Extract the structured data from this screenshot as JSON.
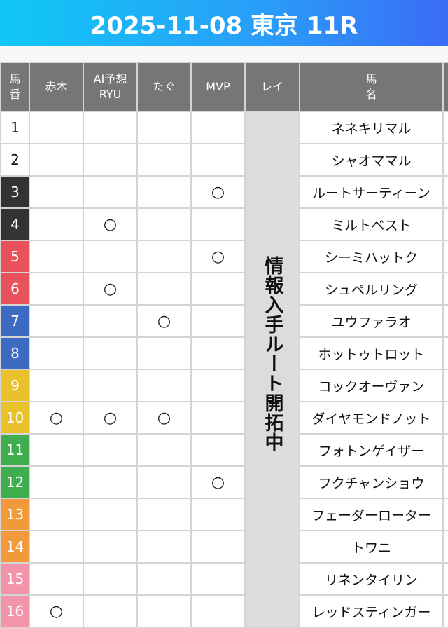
{
  "header": {
    "title": "2025-11-08 東京 11R"
  },
  "columns": {
    "num": "馬\n番",
    "akagi": "赤木",
    "ai": "AI予想\nRYU",
    "tagu": "たぐ",
    "mvp": "MVP",
    "rei": "レイ",
    "name": "馬\n名"
  },
  "rei_note": "情報入手ルート開拓中",
  "mark_symbol": "○",
  "gate_colors": {
    "1": "#ffffff",
    "2": "#333333",
    "3": "#e8525a",
    "4": "#3d6bc1",
    "5": "#e9c22b",
    "6": "#40ad4f",
    "7": "#f09a3b",
    "8": "#f395aa"
  },
  "rows": [
    {
      "num": "1",
      "gate": 1,
      "name": "ネネキリマル",
      "akagi": "",
      "ai": "",
      "tagu": "",
      "mvp": ""
    },
    {
      "num": "2",
      "gate": 1,
      "name": "シャオママル",
      "akagi": "",
      "ai": "",
      "tagu": "",
      "mvp": ""
    },
    {
      "num": "3",
      "gate": 2,
      "name": "ルートサーティーン",
      "akagi": "",
      "ai": "",
      "tagu": "",
      "mvp": "○"
    },
    {
      "num": "4",
      "gate": 2,
      "name": "ミルトベスト",
      "akagi": "",
      "ai": "○",
      "tagu": "",
      "mvp": ""
    },
    {
      "num": "5",
      "gate": 3,
      "name": "シーミハットク",
      "akagi": "",
      "ai": "",
      "tagu": "",
      "mvp": "○"
    },
    {
      "num": "6",
      "gate": 3,
      "name": "シュペルリング",
      "akagi": "",
      "ai": "○",
      "tagu": "",
      "mvp": ""
    },
    {
      "num": "7",
      "gate": 4,
      "name": "ユウファラオ",
      "akagi": "",
      "ai": "",
      "tagu": "○",
      "mvp": ""
    },
    {
      "num": "8",
      "gate": 4,
      "name": "ホットゥトロット",
      "akagi": "",
      "ai": "",
      "tagu": "",
      "mvp": ""
    },
    {
      "num": "9",
      "gate": 5,
      "name": "コックオーヴァン",
      "akagi": "",
      "ai": "",
      "tagu": "",
      "mvp": ""
    },
    {
      "num": "10",
      "gate": 5,
      "name": "ダイヤモンドノット",
      "akagi": "○",
      "ai": "○",
      "tagu": "○",
      "mvp": ""
    },
    {
      "num": "11",
      "gate": 6,
      "name": "フォトンゲイザー",
      "akagi": "",
      "ai": "",
      "tagu": "",
      "mvp": ""
    },
    {
      "num": "12",
      "gate": 6,
      "name": "フクチャンショウ",
      "akagi": "",
      "ai": "",
      "tagu": "",
      "mvp": "○"
    },
    {
      "num": "13",
      "gate": 7,
      "name": "フェーダーローター",
      "akagi": "",
      "ai": "",
      "tagu": "",
      "mvp": ""
    },
    {
      "num": "14",
      "gate": 7,
      "name": "トワニ",
      "akagi": "",
      "ai": "",
      "tagu": "",
      "mvp": ""
    },
    {
      "num": "15",
      "gate": 8,
      "name": "リネンタイリン",
      "akagi": "",
      "ai": "",
      "tagu": "",
      "mvp": ""
    },
    {
      "num": "16",
      "gate": 8,
      "name": "レッドスティンガー",
      "akagi": "○",
      "ai": "",
      "tagu": "",
      "mvp": ""
    }
  ]
}
